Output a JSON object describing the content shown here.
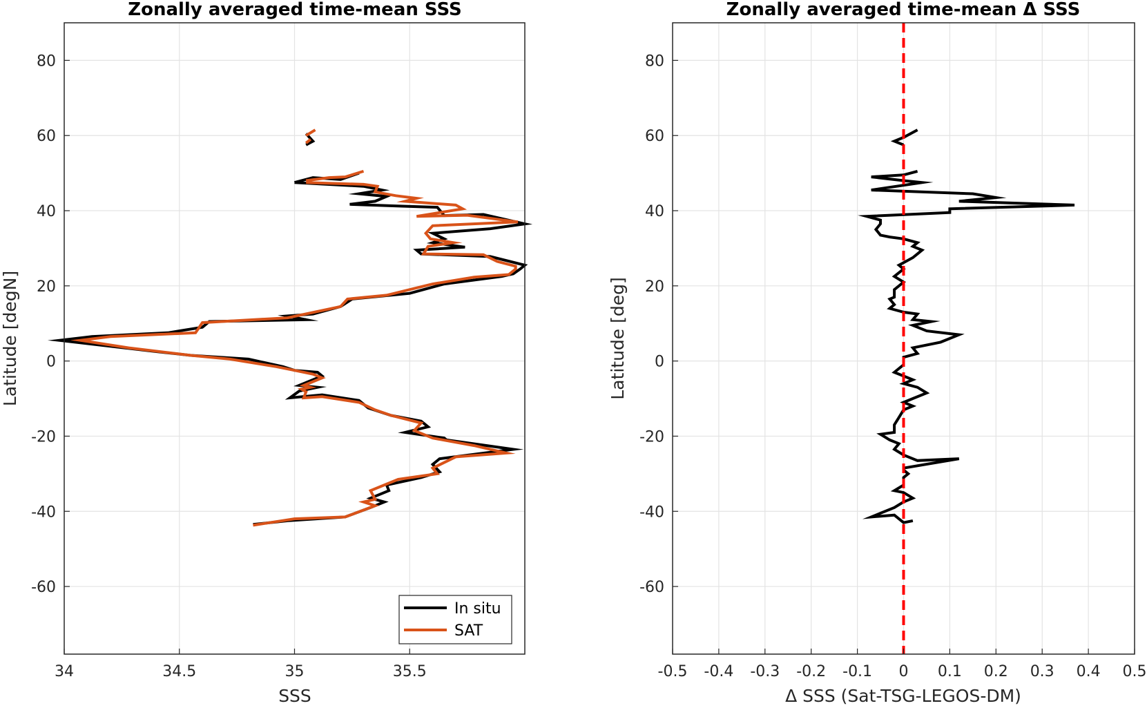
{
  "chart_data": [
    {
      "type": "line",
      "title": "Zonally averaged time-mean SSS",
      "xlabel": "SSS",
      "ylabel": "Latitude [degN]",
      "xlim": [
        34,
        36
      ],
      "ylim": [
        -78,
        90
      ],
      "xticks": [
        "34",
        "34.5",
        "35",
        "35.5"
      ],
      "yticks": [
        "80",
        "60",
        "40",
        "20",
        "0",
        "-20",
        "-40",
        "-60"
      ],
      "grid": true,
      "legend_position": "bottom-right",
      "series": [
        {
          "name": "In situ",
          "color": "#000000",
          "segments": [
            [
              [
                35.05,
                60.5
              ],
              [
                35.08,
                58.5
              ],
              [
                35.05,
                57.5
              ]
            ],
            [
              [
                35.0,
                47.5
              ],
              [
                35.08,
                48.8
              ],
              [
                35.2,
                48.3
              ],
              [
                35.28,
                50.0
              ]
            ],
            [
              [
                35.0,
                47.5
              ],
              [
                35.3,
                46.5
              ],
              [
                35.38,
                45.5
              ],
              [
                35.28,
                44.5
              ],
              [
                35.4,
                43.8
              ],
              [
                35.35,
                42.5
              ],
              [
                35.24,
                41.7
              ],
              [
                35.47,
                41.2
              ],
              [
                35.62,
                40.9
              ],
              [
                35.65,
                38.7
              ],
              [
                35.82,
                39.0
              ],
              [
                36.0,
                36.5
              ],
              [
                35.85,
                35.2
              ],
              [
                35.6,
                34.0
              ],
              [
                35.65,
                32.5
              ],
              [
                35.6,
                31.5
              ],
              [
                35.74,
                30.3
              ],
              [
                35.53,
                29.5
              ],
              [
                35.55,
                28.5
              ],
              [
                35.85,
                27.8
              ],
              [
                36.0,
                25.5
              ],
              [
                35.98,
                24.5
              ],
              [
                35.95,
                23.2
              ],
              [
                35.9,
                22.5
              ],
              [
                35.65,
                20.5
              ],
              [
                35.5,
                18.0
              ],
              [
                35.25,
                16.5
              ],
              [
                35.2,
                14.5
              ],
              [
                35.08,
                12.5
              ],
              [
                34.97,
                12.0
              ],
              [
                35.05,
                11.0
              ],
              [
                34.63,
                10.5
              ],
              [
                34.6,
                9.0
              ],
              [
                34.45,
                7.5
              ],
              [
                34.12,
                6.5
              ],
              [
                33.98,
                5.5
              ],
              [
                34.4,
                2.5
              ],
              [
                34.55,
                1.5
              ],
              [
                34.8,
                0.5
              ],
              [
                34.95,
                -1.5
              ],
              [
                35.0,
                -2.5
              ],
              [
                35.1,
                -3.0
              ],
              [
                35.12,
                -4.0
              ],
              [
                35.02,
                -6.5
              ],
              [
                35.1,
                -7.0
              ],
              [
                35.02,
                -8.0
              ],
              [
                34.98,
                -9.8
              ],
              [
                35.12,
                -9.0
              ],
              [
                35.28,
                -10.5
              ],
              [
                35.32,
                -12.5
              ],
              [
                35.42,
                -14.5
              ],
              [
                35.55,
                -16.0
              ],
              [
                35.58,
                -17.5
              ],
              [
                35.48,
                -19.0
              ],
              [
                35.65,
                -20.5
              ],
              [
                35.66,
                -21.0
              ],
              [
                35.95,
                -23.5
              ],
              [
                35.63,
                -26.0
              ],
              [
                35.6,
                -27.5
              ],
              [
                35.63,
                -29.5
              ],
              [
                35.55,
                -31.0
              ],
              [
                35.4,
                -33.0
              ],
              [
                35.41,
                -34.5
              ],
              [
                35.33,
                -36.5
              ],
              [
                35.39,
                -37.5
              ],
              [
                35.33,
                -39.0
              ],
              [
                35.22,
                -41.5
              ],
              [
                34.97,
                -42.5
              ],
              [
                34.82,
                -43.5
              ]
            ]
          ]
        },
        {
          "name": "SAT",
          "color": "#d95319",
          "segments": [
            [
              [
                35.05,
                60.0
              ],
              [
                35.09,
                61.5
              ]
            ],
            [
              [
                35.07,
                59.0
              ],
              [
                35.05,
                58.0
              ]
            ],
            [
              [
                35.05,
                48.0
              ],
              [
                35.15,
                48.8
              ],
              [
                35.22,
                49.0
              ],
              [
                35.3,
                50.5
              ]
            ],
            [
              [
                35.05,
                47.5
              ],
              [
                35.3,
                47.0
              ],
              [
                35.36,
                46.5
              ],
              [
                35.35,
                45.0
              ],
              [
                35.44,
                44.0
              ],
              [
                35.53,
                43.3
              ],
              [
                35.48,
                42.5
              ],
              [
                35.7,
                41.5
              ],
              [
                35.73,
                40.5
              ],
              [
                35.53,
                38.5
              ],
              [
                35.75,
                38.8
              ],
              [
                35.97,
                37.0
              ],
              [
                35.6,
                36.0
              ],
              [
                35.57,
                34.0
              ],
              [
                35.59,
                32.5
              ],
              [
                35.69,
                31.5
              ],
              [
                35.58,
                30.5
              ],
              [
                35.56,
                28.5
              ],
              [
                35.82,
                28.3
              ],
              [
                35.88,
                26.5
              ],
              [
                35.96,
                25.2
              ],
              [
                35.96,
                24.5
              ],
              [
                35.93,
                23.0
              ],
              [
                35.78,
                22.3
              ],
              [
                35.6,
                20.5
              ],
              [
                35.4,
                17.5
              ],
              [
                35.23,
                16.5
              ],
              [
                35.2,
                14.5
              ],
              [
                34.97,
                11.5
              ],
              [
                34.6,
                10.2
              ],
              [
                34.57,
                7.5
              ],
              [
                34.2,
                6.5
              ],
              [
                34.07,
                5.5
              ],
              [
                34.28,
                3.5
              ],
              [
                34.55,
                1.5
              ],
              [
                34.72,
                0.5
              ],
              [
                34.92,
                -1.5
              ],
              [
                35.0,
                -2.5
              ],
              [
                35.08,
                -3.5
              ],
              [
                35.12,
                -4.5
              ],
              [
                35.04,
                -6.5
              ],
              [
                35.07,
                -7.0
              ],
              [
                35.03,
                -7.5
              ],
              [
                35.05,
                -8.2
              ],
              [
                35.04,
                -9.8
              ],
              [
                35.12,
                -9.5
              ],
              [
                35.28,
                -11.0
              ],
              [
                35.35,
                -13.0
              ],
              [
                35.42,
                -14.5
              ],
              [
                35.55,
                -16.5
              ],
              [
                35.52,
                -18.5
              ],
              [
                35.6,
                -20.5
              ],
              [
                35.78,
                -22.5
              ],
              [
                35.92,
                -24.5
              ],
              [
                35.7,
                -25.5
              ],
              [
                35.6,
                -28.5
              ],
              [
                35.62,
                -30.0
              ],
              [
                35.45,
                -31.5
              ],
              [
                35.33,
                -34.5
              ],
              [
                35.35,
                -36.8
              ],
              [
                35.3,
                -37.5
              ],
              [
                35.35,
                -38.5
              ],
              [
                35.22,
                -41.5
              ],
              [
                35.0,
                -42.0
              ],
              [
                34.82,
                -43.7
              ]
            ]
          ]
        }
      ]
    },
    {
      "type": "line",
      "title": "Zonally averaged time-mean Δ SSS",
      "xlabel": "Δ SSS (Sat-TSG-LEGOS-DM)",
      "ylabel": "Latitude [deg]",
      "xlim": [
        -0.5,
        0.5
      ],
      "ylim": [
        -78,
        90
      ],
      "xticks": [
        "-0.5",
        "-0.4",
        "-0.3",
        "-0.2",
        "-0.1",
        "0",
        "0.1",
        "0.2",
        "0.3",
        "0.4",
        "0.5"
      ],
      "yticks": [
        "80",
        "60",
        "40",
        "20",
        "0",
        "-20",
        "-40",
        "-60"
      ],
      "grid": true,
      "series": [
        {
          "color": "#000000",
          "segments": [
            [
              [
                0.03,
                61.5
              ],
              [
                0.0,
                59.5
              ],
              [
                -0.02,
                58.5
              ],
              [
                0.0,
                57.5
              ]
            ],
            [
              [
                0.03,
                50.5
              ],
              [
                0.0,
                49.5
              ],
              [
                -0.07,
                49.0
              ],
              [
                0.0,
                48.0
              ],
              [
                0.04,
                47.5
              ],
              [
                -0.07,
                45.5
              ],
              [
                0.15,
                44.5
              ],
              [
                0.2,
                43.5
              ],
              [
                0.12,
                42.5
              ],
              [
                0.37,
                41.5
              ],
              [
                0.1,
                40.5
              ],
              [
                0.1,
                39.5
              ],
              [
                -0.08,
                38.5
              ],
              [
                -0.05,
                37.5
              ],
              [
                -0.05,
                36.5
              ],
              [
                -0.06,
                35.0
              ],
              [
                -0.05,
                33.5
              ],
              [
                -0.03,
                33.0
              ],
              [
                0.0,
                32.5
              ],
              [
                0.03,
                31.5
              ],
              [
                0.02,
                30.5
              ],
              [
                0.04,
                29.5
              ],
              [
                0.03,
                28.5
              ],
              [
                0.02,
                27.5
              ],
              [
                -0.01,
                25.5
              ],
              [
                0.0,
                24.5
              ],
              [
                -0.02,
                22.5
              ],
              [
                0.0,
                21.0
              ],
              [
                -0.02,
                19.0
              ],
              [
                -0.02,
                17.0
              ],
              [
                -0.03,
                16.5
              ],
              [
                -0.02,
                15.0
              ],
              [
                -0.03,
                14.0
              ],
              [
                0.0,
                13.0
              ],
              [
                0.03,
                12.5
              ],
              [
                0.02,
                11.0
              ],
              [
                0.06,
                10.5
              ],
              [
                0.02,
                9.5
              ],
              [
                0.05,
                8.0
              ],
              [
                0.12,
                7.0
              ],
              [
                0.08,
                5.0
              ],
              [
                0.02,
                3.5
              ],
              [
                0.03,
                2.0
              ],
              [
                0.0,
                1.0
              ],
              [
                0.0,
                -1.0
              ],
              [
                -0.02,
                -3.0
              ],
              [
                0.0,
                -4.0
              ],
              [
                0.02,
                -5.0
              ],
              [
                0.0,
                -6.0
              ],
              [
                0.03,
                -7.0
              ],
              [
                0.05,
                -8.5
              ],
              [
                0.02,
                -10.0
              ],
              [
                0.0,
                -11.0
              ],
              [
                0.02,
                -12.0
              ],
              [
                0.0,
                -13.0
              ],
              [
                -0.01,
                -15.0
              ],
              [
                -0.02,
                -17.0
              ],
              [
                -0.02,
                -19.0
              ],
              [
                -0.05,
                -19.5
              ],
              [
                -0.03,
                -21.0
              ],
              [
                -0.01,
                -22.0
              ],
              [
                -0.02,
                -23.5
              ],
              [
                0.0,
                -25.0
              ],
              [
                0.03,
                -26.5
              ],
              [
                0.12,
                -26.0
              ],
              [
                0.0,
                -28.5
              ],
              [
                0.0,
                -29.0
              ],
              [
                0.01,
                -30.0
              ],
              [
                0.0,
                -31.0
              ],
              [
                0.0,
                -33.0
              ],
              [
                -0.02,
                -34.5
              ],
              [
                0.0,
                -35.0
              ],
              [
                0.02,
                -36.5
              ],
              [
                0.0,
                -37.5
              ],
              [
                -0.02,
                -39.0
              ],
              [
                -0.07,
                -41.5
              ],
              [
                -0.02,
                -41.0
              ],
              [
                0.0,
                -43.0
              ],
              [
                0.02,
                -42.5
              ]
            ]
          ]
        }
      ],
      "reference_line": {
        "x": 0,
        "style": "dashed",
        "color": "#ff0000"
      }
    }
  ]
}
